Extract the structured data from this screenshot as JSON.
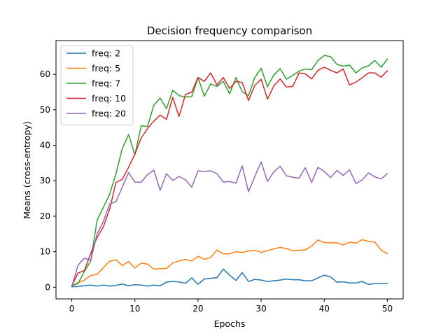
{
  "chart_data": {
    "type": "line",
    "title": "Decision frequency comparison",
    "xlabel": "Epochs",
    "ylabel": "Means (cross-entropy)",
    "xlim": [
      -2.5,
      52.5
    ],
    "ylim": [
      -3.3,
      69.5
    ],
    "xticks": [
      0,
      10,
      20,
      30,
      40,
      50
    ],
    "yticks": [
      0,
      10,
      20,
      30,
      40,
      50,
      60
    ],
    "grid": false,
    "legend_position": "top-left",
    "x": [
      0,
      1,
      2,
      3,
      4,
      5,
      6,
      7,
      8,
      9,
      10,
      11,
      12,
      13,
      14,
      15,
      16,
      17,
      18,
      19,
      20,
      21,
      22,
      23,
      24,
      25,
      26,
      27,
      28,
      29,
      30,
      31,
      32,
      33,
      34,
      35,
      36,
      37,
      38,
      39,
      40,
      41,
      42,
      43,
      44,
      45,
      46,
      47,
      48,
      49,
      50
    ],
    "series": [
      {
        "name": "freq: 2",
        "color": "#1f77b4",
        "values": [
          0.1,
          0.2,
          0.4,
          0.6,
          0.3,
          0.6,
          0.3,
          0.5,
          0.9,
          0.4,
          0.7,
          0.6,
          0.3,
          0.6,
          0.4,
          1.4,
          1.6,
          1.5,
          1.1,
          2.6,
          0.8,
          2.3,
          2.5,
          2.7,
          5.1,
          3.4,
          1.9,
          4.1,
          1.6,
          2.2,
          2.0,
          1.6,
          1.8,
          2.0,
          2.3,
          2.1,
          2.1,
          1.8,
          1.8,
          2.6,
          3.4,
          2.9,
          1.4,
          1.5,
          1.2,
          1.2,
          1.6,
          0.8,
          1.0,
          1.0,
          1.1
        ]
      },
      {
        "name": "freq: 5",
        "color": "#ff7f0e",
        "values": [
          0.3,
          1.3,
          2.0,
          3.3,
          3.6,
          5.5,
          7.3,
          7.7,
          6.1,
          7.2,
          5.4,
          6.8,
          6.5,
          5.1,
          5.2,
          5.3,
          6.8,
          7.4,
          7.8,
          7.4,
          8.7,
          7.9,
          8.3,
          10.5,
          9.4,
          9.4,
          10.0,
          9.8,
          10.2,
          10.4,
          9.8,
          10.3,
          10.8,
          11.2,
          10.9,
          10.3,
          10.4,
          10.5,
          11.6,
          13.3,
          12.6,
          12.5,
          12.5,
          11.9,
          12.7,
          12.4,
          13.4,
          12.9,
          12.7,
          10.5,
          9.4
        ]
      },
      {
        "name": "freq: 7",
        "color": "#2ca02c",
        "values": [
          0.5,
          1.0,
          4.5,
          7.3,
          18.8,
          22.5,
          26.2,
          32.0,
          39.1,
          43.0,
          37.3,
          45.5,
          45.3,
          51.3,
          53.3,
          50.3,
          55.5,
          54.0,
          53.6,
          53.7,
          59.0,
          53.8,
          57.3,
          56.6,
          58.0,
          54.5,
          59.1,
          55.1,
          54.0,
          59.1,
          61.7,
          56.5,
          59.8,
          61.6,
          58.6,
          59.7,
          60.9,
          61.5,
          61.3,
          63.9,
          65.3,
          65.0,
          62.8,
          62.3,
          62.6,
          60.4,
          61.8,
          62.4,
          63.9,
          62.0,
          64.3
        ]
      },
      {
        "name": "freq: 10",
        "color": "#d62728",
        "values": [
          0.4,
          4.0,
          4.7,
          9.5,
          14.0,
          17.0,
          22.0,
          29.5,
          30.4,
          33.8,
          37.5,
          42.1,
          44.7,
          46.8,
          48.5,
          47.3,
          53.5,
          48.1,
          54.3,
          55.0,
          59.1,
          58.0,
          60.4,
          57.0,
          59.1,
          56.0,
          58.0,
          57.7,
          52.6,
          56.9,
          58.6,
          53.0,
          56.7,
          58.7,
          56.4,
          56.6,
          60.4,
          60.1,
          58.7,
          61.1,
          62.0,
          61.1,
          60.4,
          61.5,
          57.0,
          57.8,
          59.0,
          60.4,
          60.4,
          59.2,
          61.0
        ]
      },
      {
        "name": "freq: 20",
        "color": "#9467bd",
        "values": [
          0.2,
          6.2,
          8.2,
          7.5,
          15.0,
          18.5,
          23.5,
          24.1,
          28.2,
          32.3,
          29.6,
          29.6,
          31.7,
          33.0,
          27.3,
          32.0,
          30.1,
          31.2,
          30.3,
          28.2,
          32.8,
          32.6,
          32.8,
          32.0,
          29.6,
          29.8,
          29.3,
          34.2,
          26.9,
          31.2,
          35.3,
          29.8,
          32.5,
          34.1,
          31.4,
          31.0,
          30.7,
          33.7,
          29.5,
          33.8,
          32.6,
          30.9,
          32.9,
          31.5,
          33.1,
          29.2,
          30.2,
          32.2,
          31.1,
          30.5,
          32.0
        ]
      }
    ]
  }
}
